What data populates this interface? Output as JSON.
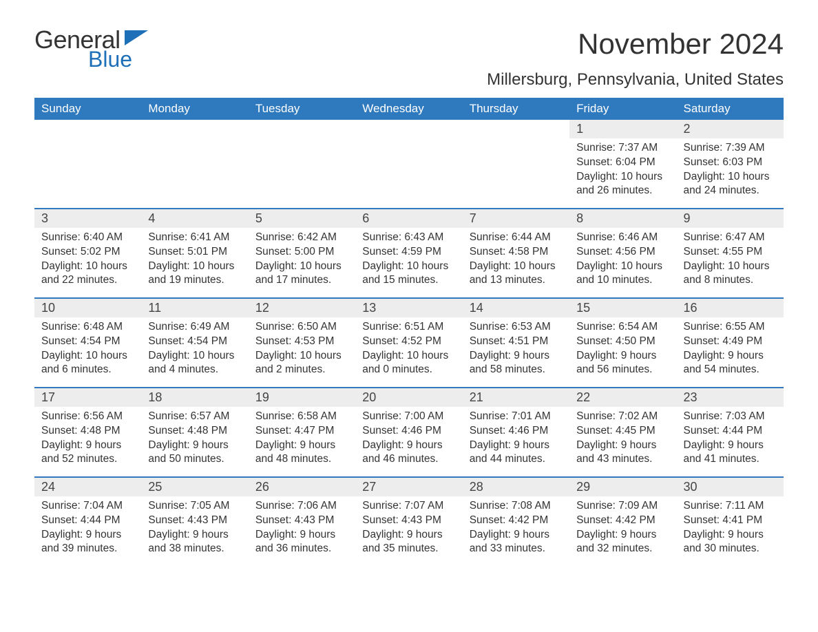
{
  "brand": {
    "part1": "General",
    "part2": "Blue",
    "flag_color": "#1d6fb8"
  },
  "title": "November 2024",
  "location": "Millersburg, Pennsylvania, United States",
  "colors": {
    "header_bg": "#2f79bf",
    "header_text": "#ffffff",
    "daynum_bg": "#ededed",
    "row_border": "#2f79bf",
    "body_text": "#333333"
  },
  "days_of_week": [
    "Sunday",
    "Monday",
    "Tuesday",
    "Wednesday",
    "Thursday",
    "Friday",
    "Saturday"
  ],
  "weeks": [
    [
      null,
      null,
      null,
      null,
      null,
      {
        "n": "1",
        "sunrise": "7:37 AM",
        "sunset": "6:04 PM",
        "daylight": "10 hours and 26 minutes."
      },
      {
        "n": "2",
        "sunrise": "7:39 AM",
        "sunset": "6:03 PM",
        "daylight": "10 hours and 24 minutes."
      }
    ],
    [
      {
        "n": "3",
        "sunrise": "6:40 AM",
        "sunset": "5:02 PM",
        "daylight": "10 hours and 22 minutes."
      },
      {
        "n": "4",
        "sunrise": "6:41 AM",
        "sunset": "5:01 PM",
        "daylight": "10 hours and 19 minutes."
      },
      {
        "n": "5",
        "sunrise": "6:42 AM",
        "sunset": "5:00 PM",
        "daylight": "10 hours and 17 minutes."
      },
      {
        "n": "6",
        "sunrise": "6:43 AM",
        "sunset": "4:59 PM",
        "daylight": "10 hours and 15 minutes."
      },
      {
        "n": "7",
        "sunrise": "6:44 AM",
        "sunset": "4:58 PM",
        "daylight": "10 hours and 13 minutes."
      },
      {
        "n": "8",
        "sunrise": "6:46 AM",
        "sunset": "4:56 PM",
        "daylight": "10 hours and 10 minutes."
      },
      {
        "n": "9",
        "sunrise": "6:47 AM",
        "sunset": "4:55 PM",
        "daylight": "10 hours and 8 minutes."
      }
    ],
    [
      {
        "n": "10",
        "sunrise": "6:48 AM",
        "sunset": "4:54 PM",
        "daylight": "10 hours and 6 minutes."
      },
      {
        "n": "11",
        "sunrise": "6:49 AM",
        "sunset": "4:54 PM",
        "daylight": "10 hours and 4 minutes."
      },
      {
        "n": "12",
        "sunrise": "6:50 AM",
        "sunset": "4:53 PM",
        "daylight": "10 hours and 2 minutes."
      },
      {
        "n": "13",
        "sunrise": "6:51 AM",
        "sunset": "4:52 PM",
        "daylight": "10 hours and 0 minutes."
      },
      {
        "n": "14",
        "sunrise": "6:53 AM",
        "sunset": "4:51 PM",
        "daylight": "9 hours and 58 minutes."
      },
      {
        "n": "15",
        "sunrise": "6:54 AM",
        "sunset": "4:50 PM",
        "daylight": "9 hours and 56 minutes."
      },
      {
        "n": "16",
        "sunrise": "6:55 AM",
        "sunset": "4:49 PM",
        "daylight": "9 hours and 54 minutes."
      }
    ],
    [
      {
        "n": "17",
        "sunrise": "6:56 AM",
        "sunset": "4:48 PM",
        "daylight": "9 hours and 52 minutes."
      },
      {
        "n": "18",
        "sunrise": "6:57 AM",
        "sunset": "4:48 PM",
        "daylight": "9 hours and 50 minutes."
      },
      {
        "n": "19",
        "sunrise": "6:58 AM",
        "sunset": "4:47 PM",
        "daylight": "9 hours and 48 minutes."
      },
      {
        "n": "20",
        "sunrise": "7:00 AM",
        "sunset": "4:46 PM",
        "daylight": "9 hours and 46 minutes."
      },
      {
        "n": "21",
        "sunrise": "7:01 AM",
        "sunset": "4:46 PM",
        "daylight": "9 hours and 44 minutes."
      },
      {
        "n": "22",
        "sunrise": "7:02 AM",
        "sunset": "4:45 PM",
        "daylight": "9 hours and 43 minutes."
      },
      {
        "n": "23",
        "sunrise": "7:03 AM",
        "sunset": "4:44 PM",
        "daylight": "9 hours and 41 minutes."
      }
    ],
    [
      {
        "n": "24",
        "sunrise": "7:04 AM",
        "sunset": "4:44 PM",
        "daylight": "9 hours and 39 minutes."
      },
      {
        "n": "25",
        "sunrise": "7:05 AM",
        "sunset": "4:43 PM",
        "daylight": "9 hours and 38 minutes."
      },
      {
        "n": "26",
        "sunrise": "7:06 AM",
        "sunset": "4:43 PM",
        "daylight": "9 hours and 36 minutes."
      },
      {
        "n": "27",
        "sunrise": "7:07 AM",
        "sunset": "4:43 PM",
        "daylight": "9 hours and 35 minutes."
      },
      {
        "n": "28",
        "sunrise": "7:08 AM",
        "sunset": "4:42 PM",
        "daylight": "9 hours and 33 minutes."
      },
      {
        "n": "29",
        "sunrise": "7:09 AM",
        "sunset": "4:42 PM",
        "daylight": "9 hours and 32 minutes."
      },
      {
        "n": "30",
        "sunrise": "7:11 AM",
        "sunset": "4:41 PM",
        "daylight": "9 hours and 30 minutes."
      }
    ]
  ],
  "labels": {
    "sunrise": "Sunrise:",
    "sunset": "Sunset:",
    "daylight": "Daylight:"
  }
}
